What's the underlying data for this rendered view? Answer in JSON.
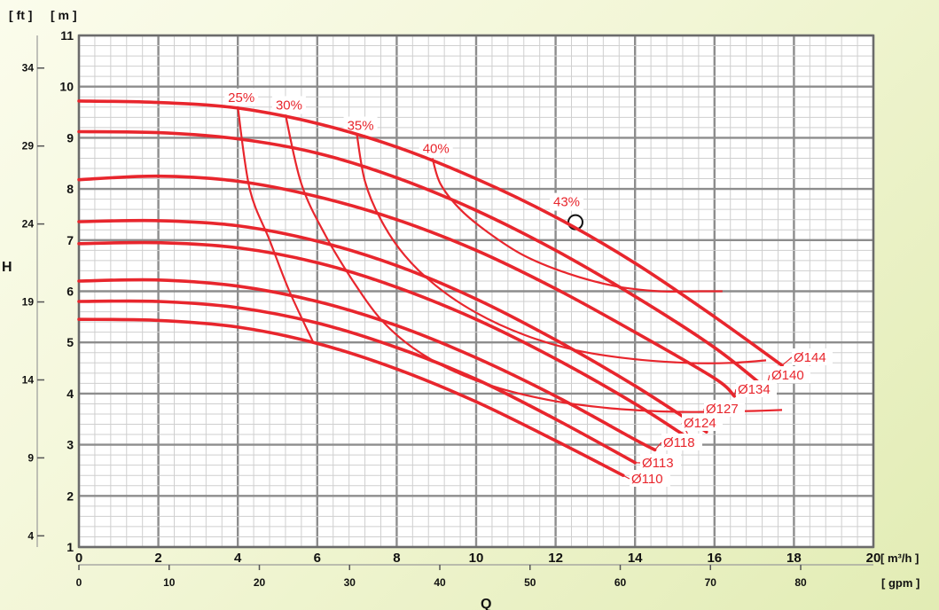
{
  "chart_data": {
    "type": "line",
    "title": "",
    "xlabel": "Q",
    "ylabel": "H",
    "x_unit_primary": "[ m³/h ]",
    "x_unit_secondary": "[ gpm ]",
    "y_unit_primary": "[ m ]",
    "y_unit_secondary": "[ ft ]",
    "xlim": [
      0,
      20
    ],
    "ylim": [
      1,
      11
    ],
    "grid": true,
    "x_ticks": [
      0,
      2,
      4,
      6,
      8,
      10,
      12,
      14,
      16,
      18,
      20
    ],
    "y_ticks": [
      1,
      2,
      3,
      4,
      5,
      6,
      7,
      8,
      9,
      10,
      11
    ],
    "x_secondary_ticks": [
      0,
      10,
      20,
      30,
      40,
      50,
      60,
      70,
      80
    ],
    "y_secondary_ticks": [
      4,
      9,
      14,
      19,
      24,
      29,
      34
    ],
    "colors": {
      "curve": "#e8262d",
      "grid": "#8d8d8d",
      "minor_grid": "#cfcfcf",
      "text": "#111111"
    },
    "series": [
      {
        "name": "Ø144",
        "x": [
          0,
          2,
          4,
          6,
          8,
          10,
          12,
          14,
          16,
          17.7
        ],
        "y": [
          9.72,
          9.69,
          9.58,
          9.28,
          8.82,
          8.2,
          7.45,
          6.55,
          5.5,
          4.55
        ]
      },
      {
        "name": "Ø140",
        "x": [
          0,
          2,
          4,
          6,
          8,
          10,
          12,
          14,
          16,
          17.3
        ],
        "y": [
          9.12,
          9.1,
          8.98,
          8.7,
          8.22,
          7.58,
          6.8,
          5.9,
          4.9,
          4.1
        ]
      },
      {
        "name": "Ø134",
        "x": [
          0,
          2,
          4,
          6,
          8,
          10,
          12,
          14,
          16,
          16.5
        ],
        "y": [
          8.18,
          8.25,
          8.15,
          7.85,
          7.4,
          6.8,
          6.05,
          5.2,
          4.3,
          3.95
        ]
      },
      {
        "name": "Ø127",
        "x": [
          0,
          2,
          4,
          6,
          8,
          10,
          12,
          14,
          15.8
        ],
        "y": [
          7.36,
          7.38,
          7.28,
          6.98,
          6.5,
          5.85,
          5.05,
          4.15,
          3.25
        ]
      },
      {
        "name": "Ø124",
        "x": [
          0,
          2,
          4,
          6,
          8,
          10,
          12,
          14,
          15.4
        ],
        "y": [
          6.93,
          6.95,
          6.85,
          6.56,
          6.08,
          5.45,
          4.68,
          3.8,
          3.1
        ]
      },
      {
        "name": "Ø118",
        "x": [
          0,
          2,
          4,
          6,
          8,
          10,
          12,
          14,
          14.5
        ],
        "y": [
          6.2,
          6.22,
          6.1,
          5.8,
          5.33,
          4.7,
          3.95,
          3.1,
          2.9
        ]
      },
      {
        "name": "Ø113",
        "x": [
          0,
          2,
          4,
          6,
          8,
          10,
          12,
          14
        ],
        "y": [
          5.8,
          5.8,
          5.68,
          5.38,
          4.9,
          4.28,
          3.5,
          2.65
        ]
      },
      {
        "name": "Ø110",
        "x": [
          0,
          2,
          4,
          6,
          8,
          10,
          12,
          13.7
        ],
        "y": [
          5.45,
          5.43,
          5.3,
          4.98,
          4.48,
          3.84,
          3.08,
          2.4
        ]
      }
    ],
    "efficiency": [
      {
        "label": "25%",
        "x": [
          4.0,
          4.3,
          4.8,
          5.3,
          5.9
        ],
        "y": [
          9.6,
          8.0,
          7.0,
          6.0,
          5.0
        ]
      },
      {
        "label": "30%",
        "x": [
          5.2,
          5.6,
          6.2,
          6.9,
          7.6,
          8.4,
          9.4,
          10.6,
          12.0,
          13.3,
          14.4,
          15.4,
          16.2,
          17.0,
          17.7
        ],
        "y": [
          9.45,
          8.1,
          7.1,
          6.2,
          5.45,
          4.9,
          4.45,
          4.1,
          3.85,
          3.72,
          3.66,
          3.64,
          3.65,
          3.66,
          3.68
        ]
      },
      {
        "label": "35%",
        "x": [
          7.0,
          7.2,
          7.6,
          8.2,
          9.0,
          10.0,
          11.2,
          12.5,
          13.9,
          15.3,
          16.4,
          17.3
        ],
        "y": [
          9.05,
          8.15,
          7.4,
          6.7,
          6.1,
          5.58,
          5.15,
          4.85,
          4.68,
          4.6,
          4.6,
          4.65
        ]
      },
      {
        "label": "40%",
        "x": [
          8.9,
          9.1,
          9.6,
          10.3,
          11.2,
          12.3,
          13.5,
          14.6,
          15.6,
          16.2
        ],
        "y": [
          8.6,
          8.1,
          7.6,
          7.15,
          6.7,
          6.35,
          6.1,
          6.0,
          6.0,
          6.0
        ]
      },
      {
        "label": "43%",
        "x": [
          12.5
        ],
        "y": [
          7.35
        ]
      }
    ],
    "curve_labels": [
      "Ø144",
      "Ø140",
      "Ø134",
      "Ø127",
      "Ø124",
      "Ø118",
      "Ø113",
      "Ø110"
    ]
  }
}
